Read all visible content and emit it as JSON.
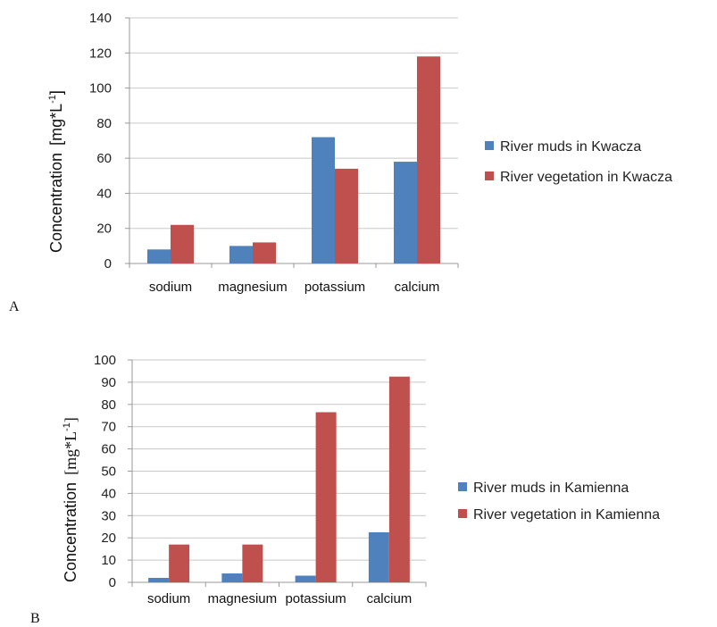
{
  "panels": [
    {
      "label": "A"
    },
    {
      "label": "B"
    }
  ],
  "chart_data": [
    {
      "type": "bar",
      "categories": [
        "sodium",
        "magnesium",
        "potassium",
        "calcium"
      ],
      "series": [
        {
          "name": "River muds in Kwacza",
          "color": "#4F81BD",
          "values": [
            8,
            10,
            72,
            58
          ]
        },
        {
          "name": "River vegetation in Kwacza",
          "color": "#C0504D",
          "values": [
            22,
            12,
            54,
            118
          ]
        }
      ],
      "ylabel_text": "Concentration",
      "ylabel_unit": "[mg*L",
      "ylabel_sup": "-1",
      "ylabel_close": "]",
      "ylim": [
        0,
        140
      ],
      "yticks": [
        0,
        20,
        40,
        60,
        80,
        100,
        120,
        140
      ],
      "legend": "right",
      "grid": true
    },
    {
      "type": "bar",
      "categories": [
        "sodium",
        "magnesium",
        "potassium",
        "calcium"
      ],
      "series": [
        {
          "name": "River muds in Kamienna",
          "color": "#4F81BD",
          "values": [
            2,
            4,
            3,
            22.5
          ]
        },
        {
          "name": "River vegetation in Kamienna",
          "color": "#C0504D",
          "values": [
            17,
            17,
            76.5,
            92.5
          ]
        }
      ],
      "ylabel_text": "Concentration",
      "ylabel_unit": "[mg*L",
      "ylabel_sup": "-1",
      "ylabel_close": "]",
      "ylim": [
        0,
        100
      ],
      "yticks": [
        0,
        10,
        20,
        30,
        40,
        50,
        60,
        70,
        80,
        90,
        100
      ],
      "legend": "right",
      "grid": true
    }
  ]
}
